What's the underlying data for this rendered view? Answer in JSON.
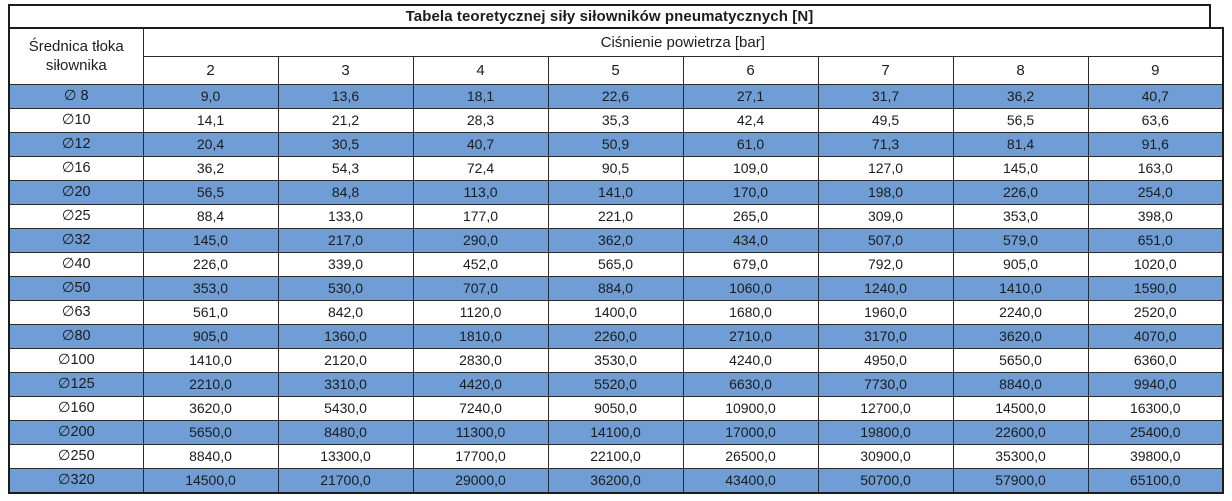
{
  "chart_data": {
    "type": "table",
    "title": "Tabela teoretycznej siły siłowników pneumatycznych [N]",
    "row_header": {
      "line1": "Średnica tłoka",
      "line2": "siłownika"
    },
    "column_group_label": "Ciśnienie powietrza [bar]",
    "columns": [
      "2",
      "3",
      "4",
      "5",
      "6",
      "7",
      "8",
      "9"
    ],
    "rows": [
      {
        "label": "∅ 8",
        "highlight": true,
        "values": [
          "9,0",
          "13,6",
          "18,1",
          "22,6",
          "27,1",
          "31,7",
          "36,2",
          "40,7"
        ]
      },
      {
        "label": "∅10",
        "highlight": false,
        "values": [
          "14,1",
          "21,2",
          "28,3",
          "35,3",
          "42,4",
          "49,5",
          "56,5",
          "63,6"
        ]
      },
      {
        "label": "∅12",
        "highlight": true,
        "values": [
          "20,4",
          "30,5",
          "40,7",
          "50,9",
          "61,0",
          "71,3",
          "81,4",
          "91,6"
        ]
      },
      {
        "label": "∅16",
        "highlight": false,
        "values": [
          "36,2",
          "54,3",
          "72,4",
          "90,5",
          "109,0",
          "127,0",
          "145,0",
          "163,0"
        ]
      },
      {
        "label": "∅20",
        "highlight": true,
        "values": [
          "56,5",
          "84,8",
          "113,0",
          "141,0",
          "170,0",
          "198,0",
          "226,0",
          "254,0"
        ]
      },
      {
        "label": "∅25",
        "highlight": false,
        "values": [
          "88,4",
          "133,0",
          "177,0",
          "221,0",
          "265,0",
          "309,0",
          "353,0",
          "398,0"
        ]
      },
      {
        "label": "∅32",
        "highlight": true,
        "values": [
          "145,0",
          "217,0",
          "290,0",
          "362,0",
          "434,0",
          "507,0",
          "579,0",
          "651,0"
        ]
      },
      {
        "label": "∅40",
        "highlight": false,
        "values": [
          "226,0",
          "339,0",
          "452,0",
          "565,0",
          "679,0",
          "792,0",
          "905,0",
          "1020,0"
        ]
      },
      {
        "label": "∅50",
        "highlight": true,
        "values": [
          "353,0",
          "530,0",
          "707,0",
          "884,0",
          "1060,0",
          "1240,0",
          "1410,0",
          "1590,0"
        ]
      },
      {
        "label": "∅63",
        "highlight": false,
        "values": [
          "561,0",
          "842,0",
          "1120,0",
          "1400,0",
          "1680,0",
          "1960,0",
          "2240,0",
          "2520,0"
        ]
      },
      {
        "label": "∅80",
        "highlight": true,
        "values": [
          "905,0",
          "1360,0",
          "1810,0",
          "2260,0",
          "2710,0",
          "3170,0",
          "3620,0",
          "4070,0"
        ]
      },
      {
        "label": "∅100",
        "highlight": false,
        "values": [
          "1410,0",
          "2120,0",
          "2830,0",
          "3530,0",
          "4240,0",
          "4950,0",
          "5650,0",
          "6360,0"
        ]
      },
      {
        "label": "∅125",
        "highlight": true,
        "values": [
          "2210,0",
          "3310,0",
          "4420,0",
          "5520,0",
          "6630,0",
          "7730,0",
          "8840,0",
          "9940,0"
        ]
      },
      {
        "label": "∅160",
        "highlight": false,
        "values": [
          "3620,0",
          "5430,0",
          "7240,0",
          "9050,0",
          "10900,0",
          "12700,0",
          "14500,0",
          "16300,0"
        ]
      },
      {
        "label": "∅200",
        "highlight": true,
        "values": [
          "5650,0",
          "8480,0",
          "11300,0",
          "14100,0",
          "17000,0",
          "19800,0",
          "22600,0",
          "25400,0"
        ]
      },
      {
        "label": "∅250",
        "highlight": false,
        "values": [
          "8840,0",
          "13300,0",
          "17700,0",
          "22100,0",
          "26500,0",
          "30900,0",
          "35300,0",
          "39800,0"
        ]
      },
      {
        "label": "∅320",
        "highlight": true,
        "values": [
          "14500,0",
          "21700,0",
          "29000,0",
          "36200,0",
          "43400,0",
          "50700,0",
          "57900,0",
          "65100,0"
        ]
      }
    ],
    "layout": {
      "highlight_row_color": "#6f9ed7",
      "grid_border_color": "#2b2b2b",
      "outer_border_color": "#1c1c1c",
      "background_color": "#ffffff"
    }
  }
}
